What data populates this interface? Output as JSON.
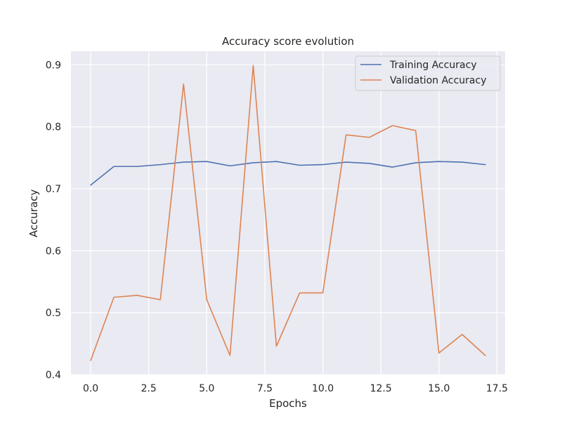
{
  "chart_data": {
    "type": "line",
    "title": "Accuracy score evolution",
    "xlabel": "Epochs",
    "ylabel": "Accuracy",
    "x": [
      0,
      1,
      2,
      3,
      4,
      5,
      6,
      7,
      8,
      9,
      10,
      11,
      12,
      13,
      14,
      15,
      16,
      17
    ],
    "xlim": [
      -0.85,
      17.85
    ],
    "ylim": [
      0.4,
      0.922
    ],
    "xticks": [
      0.0,
      2.5,
      5.0,
      7.5,
      10.0,
      12.5,
      15.0,
      17.5
    ],
    "xtick_labels": [
      "0.0",
      "2.5",
      "5.0",
      "7.5",
      "10.0",
      "12.5",
      "15.0",
      "17.5"
    ],
    "yticks": [
      0.4,
      0.5,
      0.6,
      0.7,
      0.8,
      0.9
    ],
    "ytick_labels": [
      "0.4",
      "0.5",
      "0.6",
      "0.7",
      "0.8",
      "0.9"
    ],
    "grid": true,
    "legend_position": "top-right",
    "background_color": "#eaeaf2",
    "series": [
      {
        "name": "Training Accuracy",
        "color": "#4c72b0",
        "values": [
          0.706,
          0.736,
          0.736,
          0.739,
          0.743,
          0.744,
          0.737,
          0.742,
          0.744,
          0.738,
          0.739,
          0.743,
          0.741,
          0.735,
          0.742,
          0.744,
          0.743,
          0.739
        ]
      },
      {
        "name": "Validation Accuracy",
        "color": "#dd8452",
        "values": [
          0.423,
          0.525,
          0.528,
          0.521,
          0.869,
          0.521,
          0.431,
          0.899,
          0.446,
          0.532,
          0.532,
          0.787,
          0.783,
          0.802,
          0.794,
          0.435,
          0.465,
          0.431
        ]
      }
    ]
  }
}
